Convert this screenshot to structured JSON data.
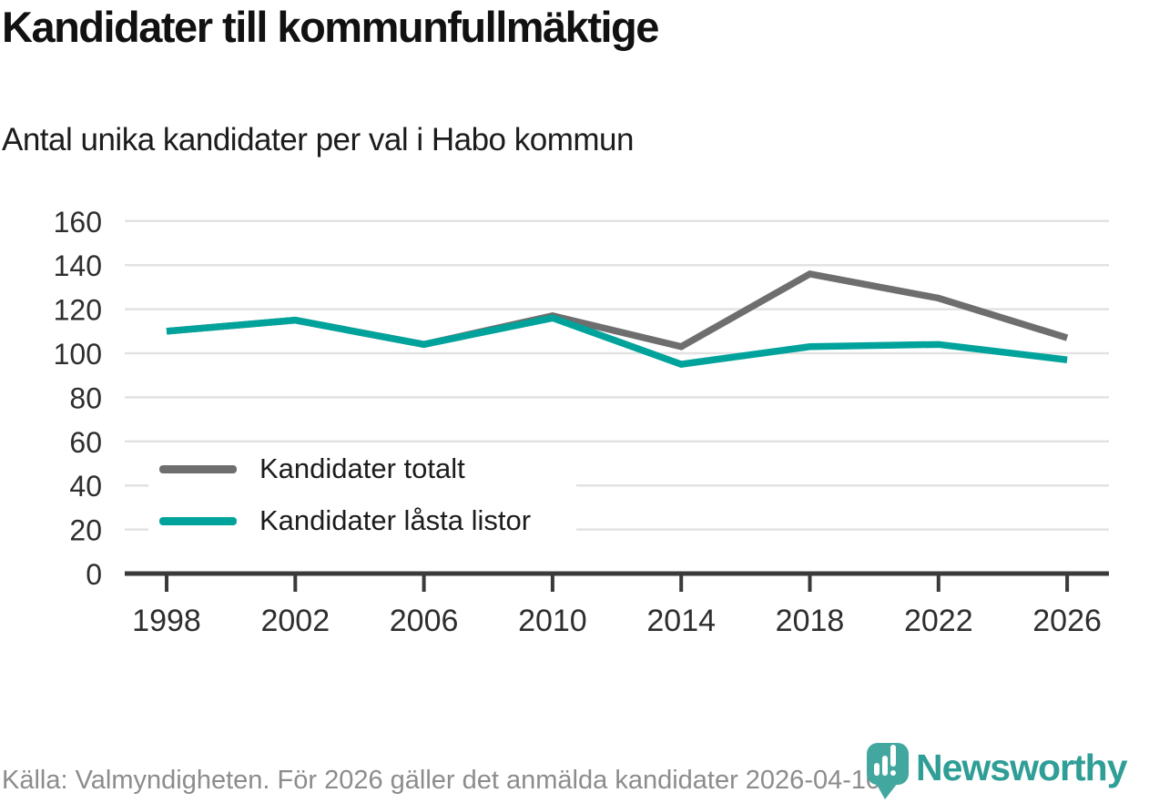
{
  "title": "Kandidater till kommunfullmäktige",
  "subtitle": "Antal unika kandidater per val i Habo kommun",
  "footer": {
    "source_text": "Källa: Valmyndigheten. För 2026 gäller det anmälda kandidater 2026-04-10.",
    "brand_name": "Newsworthy"
  },
  "colors": {
    "series_total": "#6e6e6e",
    "series_locked": "#00a39b",
    "gridline": "#e2e2e2",
    "axis": "#3a3a3a",
    "tick_text": "#2e2e2e",
    "footer_text": "#8c8c8c",
    "logo_teal": "#41a79f",
    "brand_text_teal": "#2f9e96"
  },
  "chart_data": {
    "type": "line",
    "categories": [
      "1998",
      "2002",
      "2006",
      "2010",
      "2014",
      "2018",
      "2022",
      "2026"
    ],
    "series": [
      {
        "name": "Kandidater totalt",
        "color": "#6e6e6e",
        "values": [
          110,
          115,
          104,
          117,
          103,
          136,
          125,
          107
        ]
      },
      {
        "name": "Kandidater låsta listor",
        "color": "#00a39b",
        "values": [
          110,
          115,
          104,
          116,
          95,
          103,
          104,
          97
        ]
      }
    ],
    "xlabel": "",
    "ylabel": "",
    "ylim": [
      0,
      160
    ],
    "yticks": [
      0,
      20,
      40,
      60,
      80,
      100,
      120,
      140,
      160
    ],
    "grid": "horizontal",
    "legend_position": "inside-left"
  }
}
